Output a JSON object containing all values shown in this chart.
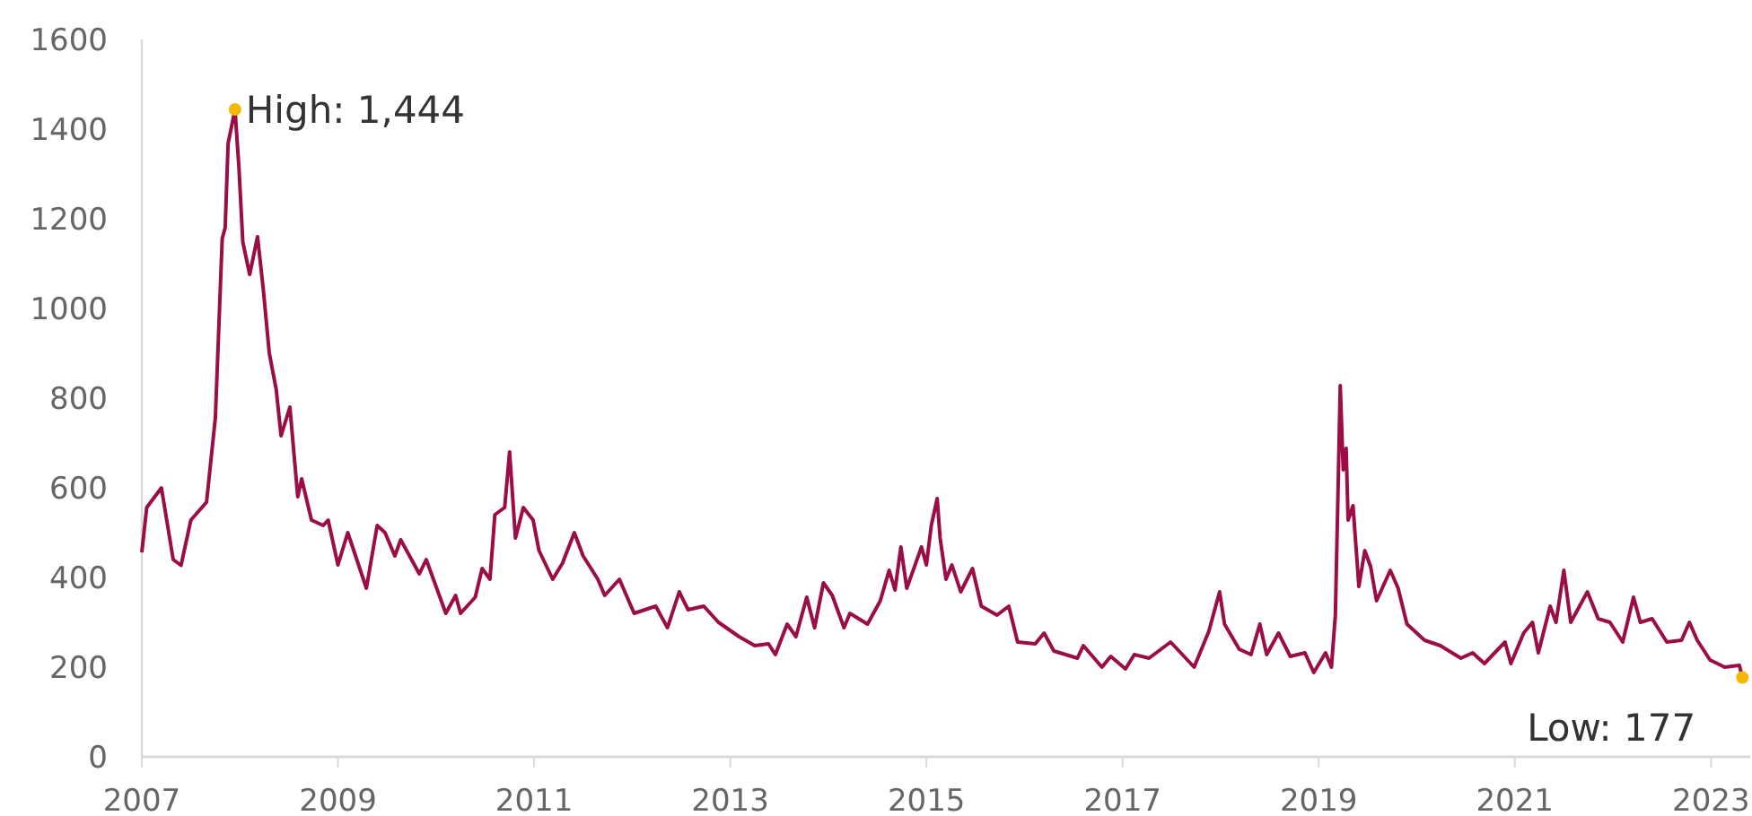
{
  "chart_data": {
    "type": "line",
    "xlim": [
      2007,
      2023.4
    ],
    "xticks": [
      2007,
      2009,
      2011,
      2013,
      2015,
      2017,
      2019,
      2021,
      2023
    ],
    "ylim": [
      0,
      1600
    ],
    "yticks": [
      0,
      200,
      400,
      600,
      800,
      1000,
      1200,
      1400,
      1600
    ],
    "grid": false,
    "annotations": [
      {
        "text": "High: 1,444",
        "x": 2007.95,
        "y": 1444
      },
      {
        "text": "Low: 177",
        "x": 2023.32,
        "y": 177
      }
    ],
    "series": [
      {
        "color": "#9b0d45",
        "x": [
          2007.0,
          2007.05,
          2007.2,
          2007.32,
          2007.4,
          2007.5,
          2007.66,
          2007.75,
          2007.82,
          2007.85,
          2007.88,
          2007.95,
          2007.99,
          2008.03,
          2008.1,
          2008.18,
          2008.24,
          2008.3,
          2008.37,
          2008.42,
          2008.51,
          2008.59,
          2008.63,
          2008.73,
          2008.85,
          2008.9,
          2009.0,
          2009.1,
          2009.29,
          2009.4,
          2009.48,
          2009.58,
          2009.64,
          2009.83,
          2009.9,
          2010.1,
          2010.2,
          2010.25,
          2010.4,
          2010.47,
          2010.55,
          2010.6,
          2010.7,
          2010.75,
          2010.81,
          2010.89,
          2010.99,
          2011.05,
          2011.19,
          2011.29,
          2011.41,
          2011.5,
          2011.65,
          2011.72,
          2011.87,
          2012.02,
          2012.24,
          2012.36,
          2012.48,
          2012.57,
          2012.73,
          2012.88,
          2013.09,
          2013.25,
          2013.39,
          2013.46,
          2013.58,
          2013.67,
          2013.78,
          2013.86,
          2013.95,
          2014.04,
          2014.16,
          2014.22,
          2014.4,
          2014.53,
          2014.62,
          2014.68,
          2014.74,
          2014.8,
          2014.95,
          2015.0,
          2015.05,
          2015.11,
          2015.14,
          2015.2,
          2015.26,
          2015.35,
          2015.47,
          2015.56,
          2015.72,
          2015.84,
          2015.93,
          2016.11,
          2016.2,
          2016.3,
          2016.54,
          2016.6,
          2016.79,
          2016.88,
          2017.03,
          2017.12,
          2017.27,
          2017.49,
          2017.73,
          2017.88,
          2017.99,
          2018.04,
          2018.19,
          2018.31,
          2018.4,
          2018.47,
          2018.59,
          2018.71,
          2018.86,
          2018.95,
          2019.07,
          2019.13,
          2019.17,
          2019.2,
          2019.22,
          2019.25,
          2019.28,
          2019.3,
          2019.35,
          2019.41,
          2019.47,
          2019.53,
          2019.59,
          2019.73,
          2019.81,
          2019.9,
          2020.08,
          2020.24,
          2020.45,
          2020.57,
          2020.69,
          2020.9,
          2020.96,
          2021.09,
          2021.18,
          2021.24,
          2021.36,
          2021.42,
          2021.5,
          2021.57,
          2021.67,
          2021.74,
          2021.85,
          2021.97,
          2022.1,
          2022.21,
          2022.28,
          2022.4,
          2022.55,
          2022.7,
          2022.78,
          2022.86,
          2022.99,
          2023.14,
          2023.29,
          2023.32
        ],
        "values": [
          456,
          556,
          600,
          440,
          427,
          528,
          568,
          756,
          1156,
          1180,
          1368,
          1444,
          1316,
          1148,
          1076,
          1160,
          1040,
          900,
          820,
          716,
          780,
          580,
          620,
          528,
          516,
          528,
          428,
          500,
          376,
          516,
          500,
          448,
          484,
          408,
          440,
          320,
          360,
          320,
          356,
          420,
          396,
          540,
          556,
          680,
          488,
          556,
          528,
          460,
          396,
          432,
          500,
          448,
          396,
          360,
          396,
          320,
          336,
          288,
          368,
          328,
          336,
          300,
          268,
          248,
          252,
          228,
          296,
          268,
          356,
          288,
          388,
          360,
          288,
          320,
          296,
          348,
          416,
          372,
          468,
          376,
          468,
          428,
          516,
          576,
          488,
          396,
          428,
          368,
          420,
          336,
          316,
          336,
          256,
          252,
          276,
          236,
          220,
          248,
          200,
          224,
          196,
          228,
          220,
          256,
          200,
          280,
          368,
          296,
          240,
          228,
          296,
          228,
          276,
          224,
          232,
          188,
          232,
          200,
          316,
          620,
          828,
          640,
          688,
          528,
          560,
          380,
          460,
          424,
          348,
          416,
          376,
          296,
          260,
          248,
          220,
          232,
          208,
          256,
          208,
          276,
          300,
          232,
          336,
          300,
          416,
          300,
          340,
          368,
          308,
          300,
          256,
          356,
          300,
          308,
          256,
          260,
          300,
          260,
          216,
          200,
          204,
          177
        ]
      },
      {
        "type": "scatter",
        "color": "#f5b800",
        "marker": "circle",
        "x": [
          2007.95,
          2023.32
        ],
        "values": [
          1444,
          177
        ]
      }
    ]
  }
}
